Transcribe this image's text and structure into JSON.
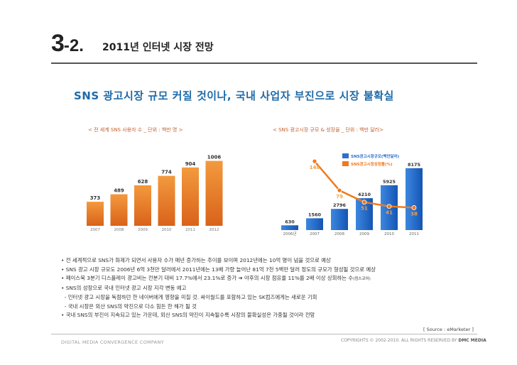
{
  "section": {
    "number": "3",
    "suffix": "-2.",
    "title": "2011년 인터넷 시장 전망"
  },
  "headline": "SNS 광고시장 규모 커질 것이나, 국내 사업자 부진으로 시장 불확실",
  "colors": {
    "headline": "#1e6aa8",
    "caption": "#c06030",
    "bar_left": "#e87722",
    "bar_right": "#1f66c9",
    "line": "#f07a1a"
  },
  "chart_data": [
    {
      "type": "bar",
      "title": "< 전 세계 SNS 사용자 수 _ 단위 : 백만 명 >",
      "categories": [
        "2007",
        "2008",
        "2009",
        "2010",
        "2011",
        "2012"
      ],
      "values": [
        373,
        489,
        628,
        774,
        904,
        1006
      ],
      "ylim": [
        0,
        1100
      ]
    },
    {
      "type": "bar",
      "title": "< SNS 광고시장 규모 & 성장율 _ 단위 : 백만 달러>",
      "categories": [
        "2006년",
        "2007",
        "2008",
        "2009",
        "2010",
        "2011"
      ],
      "legend": [
        "SNS광고시장규모(백만달러)",
        "SNS광고시장성장률(%)"
      ],
      "series": [
        {
          "name": "SNS광고시장규모(백만달러)",
          "type": "bar",
          "values": [
            630,
            1560,
            2796,
            4210,
            5925,
            8175
          ]
        },
        {
          "name": "SNS광고시장성장률(%)",
          "type": "line",
          "values": [
            null,
            148,
            79,
            51,
            41,
            38
          ]
        }
      ],
      "ylim": [
        0,
        9000
      ]
    }
  ],
  "bullets": [
    "• 전 세계적으로 SNS가 화제가 되면서 사용자 수가 매년 증가하는 추이를 보이며 2012년에는 10억 명이 넘을 것으로 예상",
    "• SNS 광고 시장 규모도 2006년 6억 3천만 달러에서 2011년에는 13배 가량 늘어난 81억 7천 5백만 달러 정도의 규모가 형성될 것으로 예상",
    "• 페이스북 3분기 디스플레이 광고비는 전분기 대비 17.7%에서 23.1%로 증가 ➔ 야후의 시장 점유율 11%를 2배 이상 상회하는 수",
    "• SNS의 성장으로 국내 인터넷 광고 시장 지각 변동 예고",
    "  - 인터넷 광고 시장을 독점하던 한 네이버에게 영향을 미칠 것. 싸이월드를 포함하고 있는 SK컴즈에게는 새로운 기회",
    "  - 국내 시장은 외산 SNS의 약진으로 다소 힘든 한 해가 될 것",
    "• 국내 SNS의 부진이 지속되고 있는 가운데, 외산 SNS의 약진이 지속될수록 시장의 불확실성은 가중될 것이라 전망"
  ],
  "bullet3_source": "(컴스코어)",
  "source": "[ Source : eMarketer ]",
  "footer": {
    "company": "DIGITAL MEDIA CONVERGENCE COMPANY",
    "copyright": "COPYRIGHTS © 2002-2010. ALL RIGHTS RESERVED BY",
    "brand": "DMC MEDIA"
  }
}
